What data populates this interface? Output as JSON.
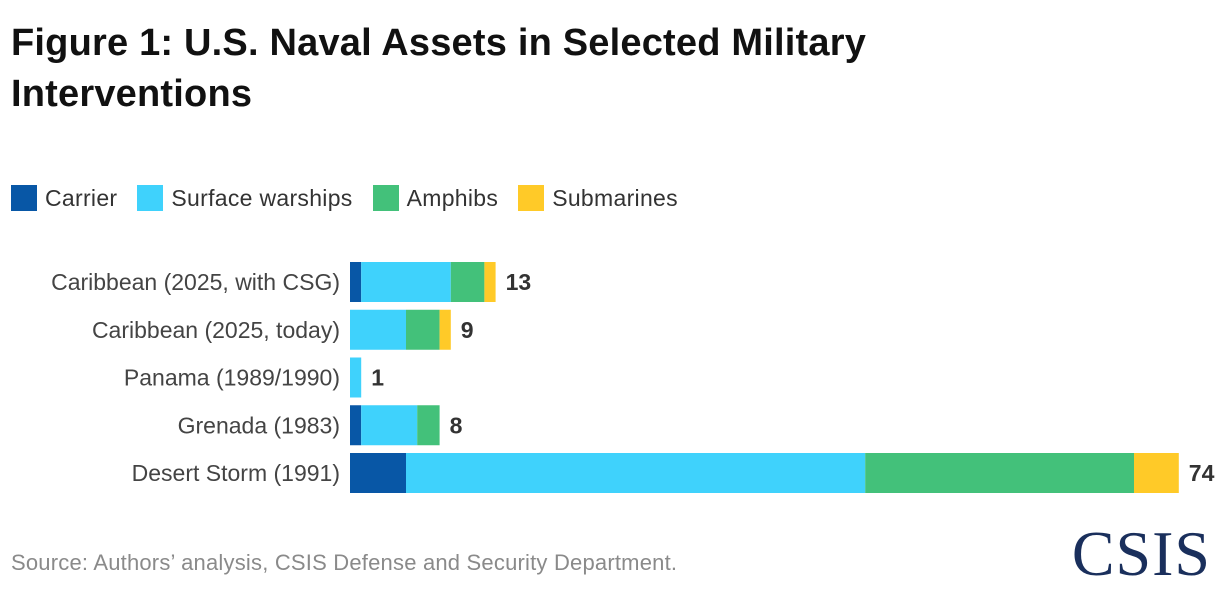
{
  "title": "Figure 1: U.S. Naval Assets in Selected Military Interventions",
  "source": "Source: Authors’ analysis, CSIS Defense and Security Department.",
  "logo_text": "CSIS",
  "chart_data": {
    "type": "bar",
    "orientation": "horizontal",
    "stacked": true,
    "categories": [
      "Caribbean (2025, with CSG)",
      "Caribbean (2025, today)",
      "Panama (1989/1990)",
      "Grenada (1983)",
      "Desert Storm (1991)"
    ],
    "series": [
      {
        "name": "Carrier",
        "color": "#0857a6",
        "values": [
          1,
          0,
          0,
          1,
          5
        ]
      },
      {
        "name": "Surface warships",
        "color": "#3fd2fc",
        "values": [
          8,
          5,
          1,
          5,
          41
        ]
      },
      {
        "name": "Amphibs",
        "color": "#43c17a",
        "values": [
          3,
          3,
          0,
          2,
          24
        ]
      },
      {
        "name": "Submarines",
        "color": "#ffca28",
        "values": [
          1,
          1,
          0,
          0,
          4
        ]
      }
    ],
    "totals": [
      "13",
      "9",
      "1",
      "8",
      "74"
    ],
    "legend": "top-left",
    "grid": false
  }
}
